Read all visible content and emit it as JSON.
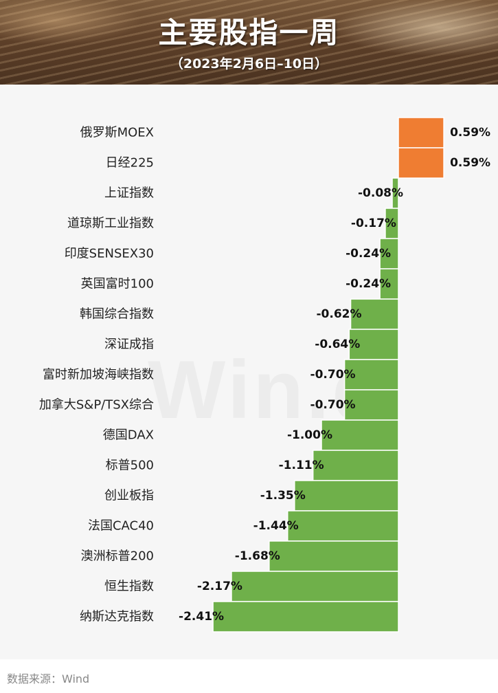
{
  "header": {
    "title": "主要股指一周",
    "subtitle": "（2023年2月6日–10日）"
  },
  "watermark": "Win.d",
  "source": "数据来源：Wind",
  "colors": {
    "positive": "#ef7d32",
    "negative": "#6fb04a"
  },
  "chart_data": {
    "type": "bar",
    "orientation": "horizontal",
    "categories": [
      "俄罗斯MOEX",
      "日经225",
      "上证指数",
      "道琼斯工业指数",
      "印度SENSEX30",
      "英国富时100",
      "韩国综合指数",
      "深证成指",
      "富时新加坡海峡指数",
      "加拿大S&P/TSX综合",
      "德国DAX",
      "标普500",
      "创业板指",
      "法国CAC40",
      "澳洲标普200",
      "恒生指数",
      "纳斯达克指数"
    ],
    "values": [
      0.59,
      0.59,
      -0.08,
      -0.17,
      -0.24,
      -0.24,
      -0.62,
      -0.64,
      -0.7,
      -0.7,
      -1.0,
      -1.11,
      -1.35,
      -1.44,
      -1.68,
      -2.17,
      -2.41
    ],
    "value_labels": [
      "0.59%",
      "0.59%",
      "-0.08%",
      "-0.17%",
      "-0.24%",
      "-0.24%",
      "-0.62%",
      "-0.64%",
      "-0.70%",
      "-0.70%",
      "-1.00%",
      "-1.11%",
      "-1.35%",
      "-1.44%",
      "-1.68%",
      "-2.17%",
      "-2.41%"
    ],
    "unit": "%",
    "title": "主要股指一周",
    "xlabel": "",
    "ylabel": "",
    "grid": false,
    "legend": "none"
  }
}
